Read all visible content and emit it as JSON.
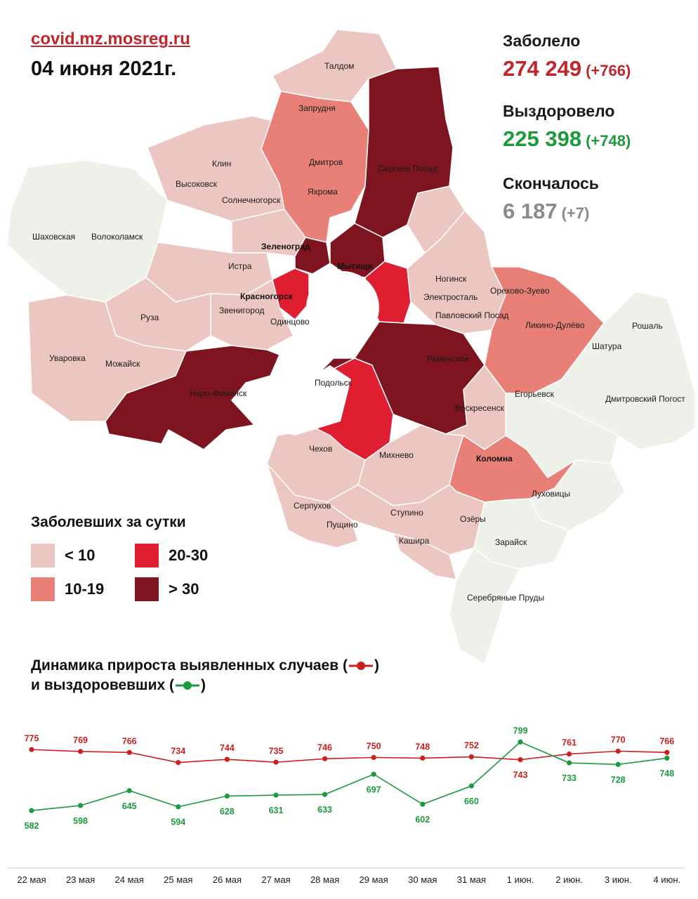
{
  "header": {
    "source": "covid.mz.mosreg.ru",
    "date": "04 июня 2021г."
  },
  "stats": {
    "infected_label": "Заболело",
    "infected_value": "274 249",
    "infected_delta": "(+766)",
    "recovered_label": "Выздоровело",
    "recovered_value": "225 398",
    "recovered_delta": "(+748)",
    "deceased_label": "Скончалось",
    "deceased_value": "6 187",
    "deceased_delta": "(+7)"
  },
  "colors": {
    "lt10": "#ecc7c1",
    "c10_19": "#e88078",
    "c20_30": "#e01e32",
    "gt30": "#7d1420",
    "none": "#eef1ea",
    "infected": "#c0272d",
    "recovered": "#1d9a3e",
    "deceased": "#8a8a8a"
  },
  "map": {
    "places": [
      "Талдом",
      "Запрудня",
      "Дмитров",
      "Яхрома",
      "Сергиев Посад",
      "Клин",
      "Высоковск",
      "Солнечногорск",
      "Шаховская",
      "Волоколамск",
      "Зеленоград",
      "Истра",
      "Мытищи",
      "Красногорск",
      "Ногинск",
      "Электросталь",
      "Павловский Посад",
      "Орехово-Зуево",
      "Ликино-Дулёво",
      "Рошаль",
      "Шатура",
      "Руза",
      "Звенигород",
      "Одинцово",
      "Уваровка",
      "Можайск",
      "Наро-Фоминск",
      "Раменское",
      "Подольск",
      "Воскресенск",
      "Егорьевск",
      "Дмитровский Погост",
      "Чехов",
      "Михнево",
      "Коломна",
      "Луховицы",
      "Серпухов",
      "Пущино",
      "Ступино",
      "Озёры",
      "Кашира",
      "Зарайск",
      "Серебряные Пруды"
    ]
  },
  "legend": {
    "title": "Заболевших за сутки",
    "lt10": "< 10",
    "c10_19": "10-19",
    "c20_30": "20-30",
    "gt30": "> 30"
  },
  "dynamics": {
    "title_line1": "Динамика прироста выявленных случаев (",
    "title_line1_end": ")",
    "title_line2": "и выздоровевших (",
    "title_line2_end": ")"
  },
  "chart_data": {
    "type": "line",
    "categories": [
      "22 мая",
      "23 мая",
      "24 мая",
      "25 мая",
      "26 мая",
      "27 мая",
      "28 мая",
      "29 мая",
      "30 мая",
      "31 мая",
      "1 июн.",
      "2 июн.",
      "3 июн.",
      "4 июн."
    ],
    "series": [
      {
        "color": "#cc2020",
        "values": [
          775,
          769,
          766,
          734,
          744,
          735,
          746,
          750,
          748,
          752,
          743,
          761,
          770,
          766
        ]
      },
      {
        "color": "#1d9a3e",
        "values": [
          582,
          598,
          645,
          594,
          628,
          631,
          633,
          697,
          602,
          660,
          799,
          733,
          728,
          748
        ]
      }
    ],
    "ylim": [
      480,
      880
    ],
    "grid": false
  }
}
